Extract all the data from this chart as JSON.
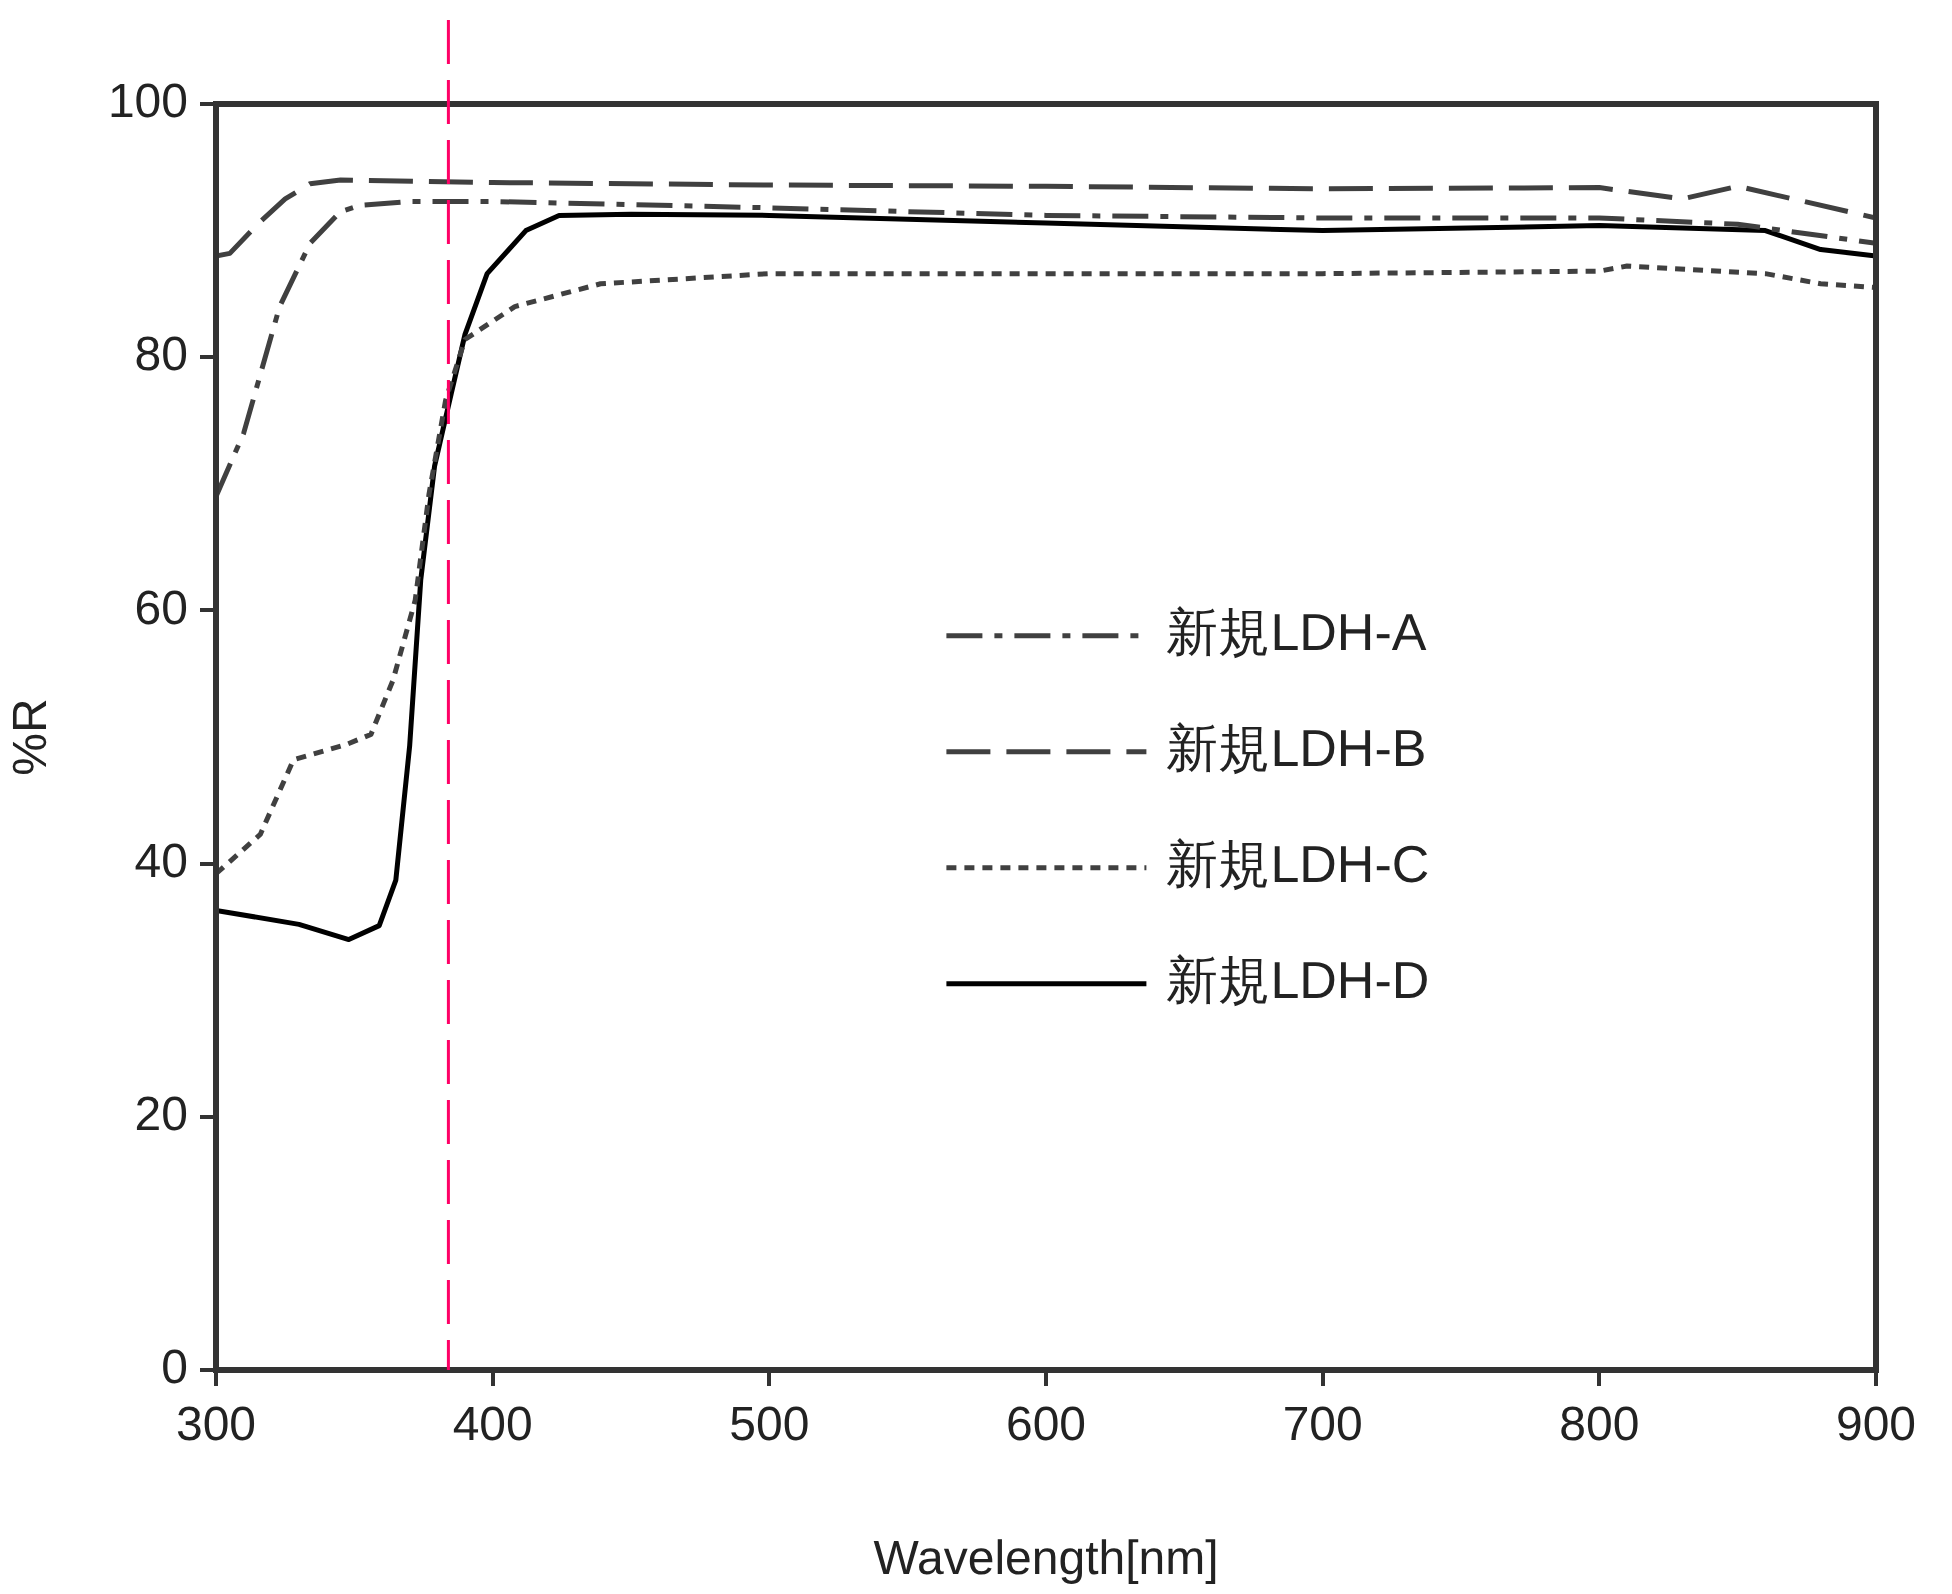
{
  "chart_data": {
    "type": "line",
    "xlabel": "Wavelength[nm]",
    "ylabel": "%R",
    "xlim": [
      300,
      900
    ],
    "xticks": [
      300,
      400,
      500,
      600,
      700,
      800,
      900
    ],
    "ylim": [
      0,
      100
    ],
    "yticks": [
      0,
      20,
      40,
      60,
      80,
      100
    ],
    "grid": false,
    "legend": "right",
    "marker": "none",
    "ref_lines": [
      {
        "axis": "x",
        "value": 384,
        "color": "#ff0066",
        "line_style": "dashed"
      }
    ],
    "series": [
      {
        "name": "新規LDH-A",
        "color": "#404040",
        "line_style": "dashdot",
        "x": [
          300,
          310,
          323,
          334,
          345,
          352,
          370,
          400,
          500,
          600,
          700,
          800,
          850,
          900
        ],
        "values": [
          69,
          74,
          84,
          89,
          91.5,
          92,
          92.3,
          92.3,
          91.8,
          91.2,
          91,
          91,
          90.5,
          89
        ]
      },
      {
        "name": "新規LDH-B",
        "color": "#404040",
        "line_style": "dashed",
        "x": [
          300,
          305,
          315,
          325,
          334,
          345,
          400,
          500,
          600,
          700,
          800,
          830,
          850,
          870,
          900
        ],
        "values": [
          88,
          88.2,
          90.5,
          92.5,
          93.7,
          94,
          93.8,
          93.6,
          93.5,
          93.3,
          93.4,
          92.5,
          93.5,
          92.5,
          91
        ]
      },
      {
        "name": "新規LDH-C",
        "color": "#404040",
        "line_style": "dotted",
        "x": [
          300,
          316,
          328,
          347,
          356,
          364,
          372,
          377,
          383,
          390,
          408,
          439,
          500,
          600,
          700,
          800,
          810,
          860,
          880,
          900
        ],
        "values": [
          39.2,
          42.3,
          48.2,
          49.4,
          50.2,
          54.5,
          60.8,
          69.2,
          76.6,
          81.4,
          84,
          85.8,
          86.6,
          86.6,
          86.6,
          86.8,
          87.2,
          86.6,
          85.8,
          85.5
        ]
      },
      {
        "name": "新規LDH-D",
        "color": "#000000",
        "line_style": "solid",
        "x": [
          300,
          330,
          348,
          359,
          365,
          370,
          374,
          379,
          385,
          390,
          398,
          412,
          424,
          450,
          500,
          600,
          700,
          800,
          860,
          880,
          900
        ],
        "values": [
          36.3,
          35.2,
          34,
          35.1,
          38.7,
          49.3,
          62.4,
          71.4,
          77.1,
          81.8,
          86.6,
          90,
          91.2,
          91.3,
          91.2,
          90.6,
          90,
          90.4,
          90,
          88.5,
          88
        ]
      }
    ]
  }
}
